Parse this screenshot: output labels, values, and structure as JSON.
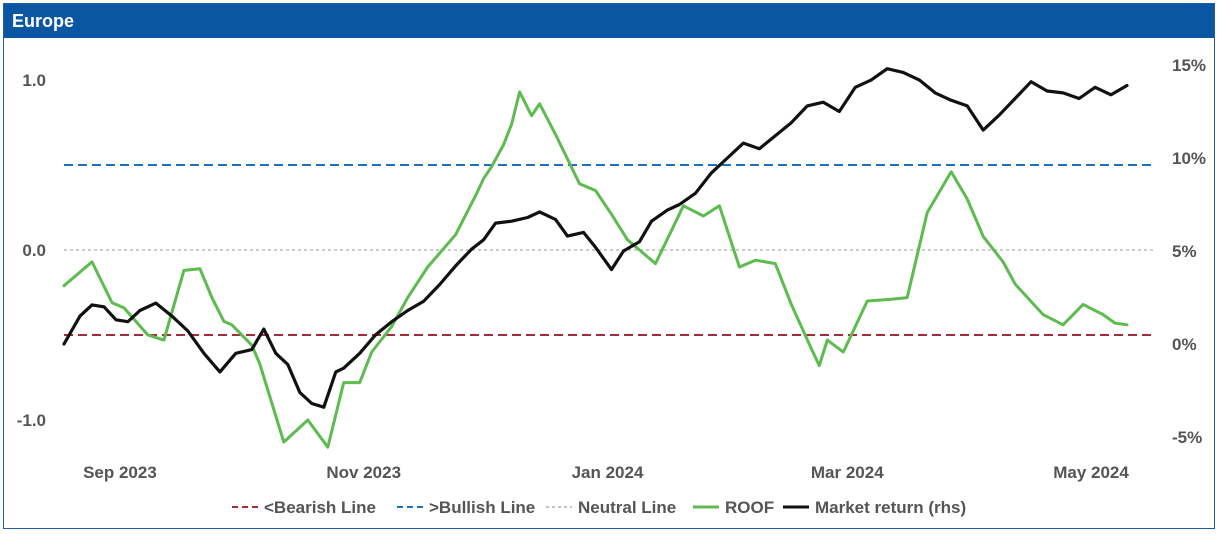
{
  "chart_data": {
    "type": "line",
    "title": "Europe",
    "left_axis": {
      "range": [
        -1.2,
        1.1
      ],
      "ticks": [
        1.0,
        0.0,
        -1.0
      ],
      "tick_labels": [
        "1.0",
        "0.0",
        "-1.0"
      ]
    },
    "right_axis": {
      "range": [
        -5.5,
        16
      ],
      "ticks": [
        15,
        10,
        5,
        0,
        -5
      ],
      "tick_labels": [
        "15%",
        "10%",
        "5%",
        "0%",
        "-5%"
      ]
    },
    "x_axis": {
      "range": [
        "2023-09-01",
        "2024-05-31"
      ],
      "tick_labels": [
        "Sep 2023",
        "Nov 2023",
        "Jan 2024",
        "Mar 2024",
        "May 2024"
      ],
      "tick_dates": [
        "2023-09-15",
        "2023-11-15",
        "2024-01-15",
        "2024-03-15",
        "2024-05-15"
      ]
    },
    "reference_lines": [
      {
        "name": "<Bearish Line",
        "value": -0.5,
        "color": "#a52a3a",
        "style": "dashed"
      },
      {
        "name": ">Bullish Line",
        "value": 0.5,
        "color": "#1f6fbf",
        "style": "dashed"
      },
      {
        "name": "Neutral Line",
        "value": 0.0,
        "color": "#bbbbbb",
        "style": "dotted"
      }
    ],
    "series": [
      {
        "name": "ROOF",
        "axis": "left",
        "color": "#5dbb4f",
        "x": [
          "2023-09-01",
          "2023-09-08",
          "2023-09-13",
          "2023-09-16",
          "2023-09-22",
          "2023-09-26",
          "2023-10-01",
          "2023-10-05",
          "2023-10-08",
          "2023-10-11",
          "2023-10-13",
          "2023-10-18",
          "2023-10-20",
          "2023-10-26",
          "2023-11-01",
          "2023-11-06",
          "2023-11-10",
          "2023-11-14",
          "2023-11-17",
          "2023-11-22",
          "2023-11-26",
          "2023-12-01",
          "2023-12-08",
          "2023-12-13",
          "2023-12-15",
          "2023-12-17",
          "2023-12-20",
          "2023-12-22",
          "2023-12-24",
          "2023-12-27",
          "2023-12-29",
          "2024-01-02",
          "2024-01-08",
          "2024-01-12",
          "2024-01-16",
          "2024-01-20",
          "2024-01-23",
          "2024-01-27",
          "2024-02-03",
          "2024-02-08",
          "2024-02-12",
          "2024-02-17",
          "2024-02-21",
          "2024-02-26",
          "2024-03-01",
          "2024-03-06",
          "2024-03-08",
          "2024-03-10",
          "2024-03-14",
          "2024-03-20",
          "2024-03-26",
          "2024-03-30",
          "2024-04-04",
          "2024-04-10",
          "2024-04-14",
          "2024-04-18",
          "2024-04-23",
          "2024-04-26",
          "2024-05-03",
          "2024-05-08",
          "2024-05-13",
          "2024-05-18",
          "2024-05-21",
          "2024-05-24"
        ],
        "values": [
          -0.21,
          -0.07,
          -0.31,
          -0.34,
          -0.5,
          -0.53,
          -0.12,
          -0.11,
          -0.28,
          -0.42,
          -0.44,
          -0.56,
          -0.67,
          -1.13,
          -1.0,
          -1.16,
          -0.78,
          -0.78,
          -0.6,
          -0.45,
          -0.28,
          -0.1,
          0.09,
          0.32,
          0.42,
          0.49,
          0.62,
          0.74,
          0.93,
          0.79,
          0.86,
          0.68,
          0.39,
          0.35,
          0.21,
          0.06,
          0.0,
          -0.08,
          0.26,
          0.2,
          0.26,
          -0.1,
          -0.06,
          -0.08,
          -0.32,
          -0.58,
          -0.68,
          -0.53,
          -0.6,
          -0.3,
          -0.29,
          -0.28,
          0.22,
          0.46,
          0.3,
          0.08,
          -0.07,
          -0.2,
          -0.38,
          -0.44,
          -0.32,
          -0.38,
          -0.43,
          -0.44
        ]
      },
      {
        "name": "Market return (rhs)",
        "axis": "right",
        "color": "#111111",
        "x": [
          "2023-09-01",
          "2023-09-05",
          "2023-09-08",
          "2023-09-11",
          "2023-09-14",
          "2023-09-17",
          "2023-09-20",
          "2023-09-24",
          "2023-09-28",
          "2023-10-02",
          "2023-10-06",
          "2023-10-10",
          "2023-10-14",
          "2023-10-18",
          "2023-10-21",
          "2023-10-24",
          "2023-10-27",
          "2023-10-30",
          "2023-11-02",
          "2023-11-05",
          "2023-11-08",
          "2023-11-10",
          "2023-11-14",
          "2023-11-18",
          "2023-11-22",
          "2023-11-26",
          "2023-11-30",
          "2023-12-04",
          "2023-12-08",
          "2023-12-12",
          "2023-12-15",
          "2023-12-18",
          "2023-12-22",
          "2023-12-26",
          "2023-12-29",
          "2024-01-02",
          "2024-01-05",
          "2024-01-09",
          "2024-01-12",
          "2024-01-16",
          "2024-01-19",
          "2024-01-23",
          "2024-01-26",
          "2024-01-30",
          "2024-02-02",
          "2024-02-06",
          "2024-02-10",
          "2024-02-14",
          "2024-02-18",
          "2024-02-22",
          "2024-02-26",
          "2024-03-01",
          "2024-03-05",
          "2024-03-09",
          "2024-03-13",
          "2024-03-17",
          "2024-03-21",
          "2024-03-25",
          "2024-03-29",
          "2024-04-02",
          "2024-04-06",
          "2024-04-10",
          "2024-04-14",
          "2024-04-18",
          "2024-04-22",
          "2024-04-26",
          "2024-04-30",
          "2024-05-04",
          "2024-05-08",
          "2024-05-12",
          "2024-05-16",
          "2024-05-20",
          "2024-05-24"
        ],
        "values": [
          0.0,
          1.5,
          2.1,
          2.0,
          1.3,
          1.2,
          1.8,
          2.2,
          1.5,
          0.7,
          -0.5,
          -1.5,
          -0.5,
          -0.3,
          0.8,
          -0.5,
          -1.1,
          -2.6,
          -3.2,
          -3.4,
          -1.5,
          -1.3,
          -0.5,
          0.5,
          1.2,
          1.8,
          2.3,
          3.2,
          4.2,
          5.1,
          5.6,
          6.5,
          6.6,
          6.8,
          7.1,
          6.7,
          5.8,
          6.0,
          5.2,
          4.0,
          5.0,
          5.5,
          6.6,
          7.2,
          7.5,
          8.1,
          9.2,
          10.0,
          10.8,
          10.5,
          11.2,
          11.9,
          12.8,
          13.0,
          12.5,
          13.8,
          14.2,
          14.8,
          14.6,
          14.2,
          13.5,
          13.1,
          12.8,
          11.5,
          12.3,
          13.2,
          14.1,
          13.6,
          13.5,
          13.2,
          13.8,
          13.4,
          13.9
        ]
      }
    ],
    "legend": {
      "placement": "bottom",
      "entries": [
        "<Bearish Line",
        ">Bullish Line",
        "Neutral Line",
        "ROOF",
        "Market return (rhs)"
      ]
    },
    "grid": false
  }
}
